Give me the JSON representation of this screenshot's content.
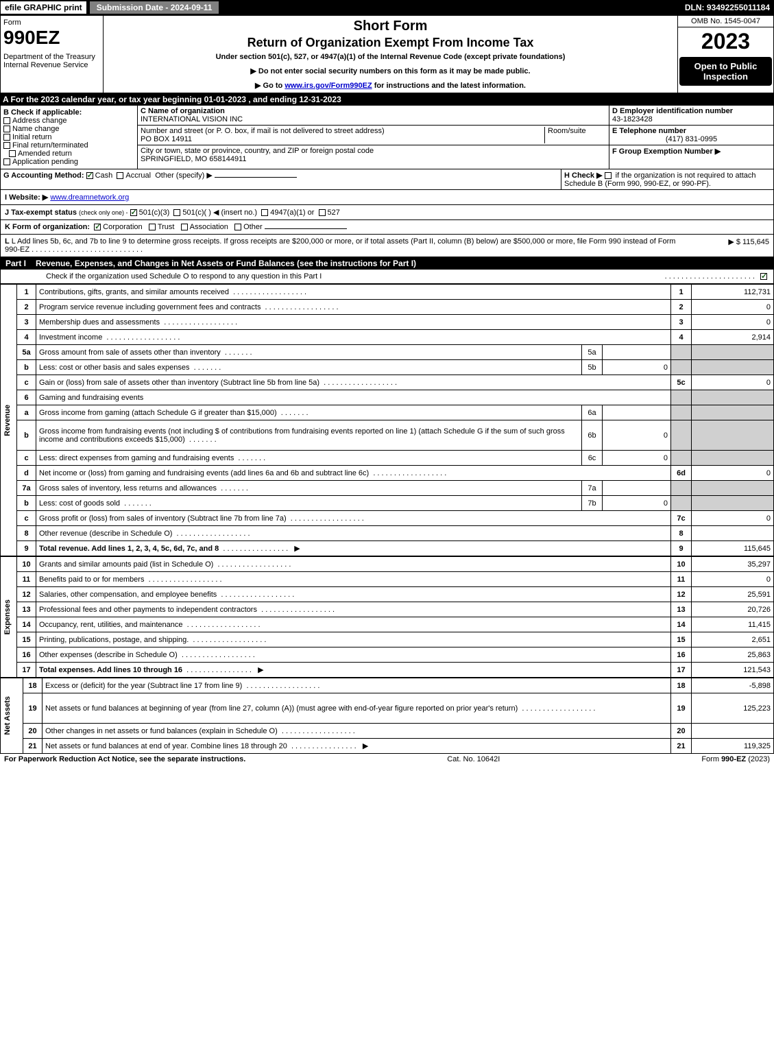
{
  "topbar": {
    "efile": "efile GRAPHIC print",
    "subdate_label": "Submission Date - 2024-09-11",
    "dln": "DLN: 93492255011184"
  },
  "header": {
    "form_label": "Form",
    "form_number": "990EZ",
    "dept": "Department of the Treasury\nInternal Revenue Service",
    "title1": "Short Form",
    "title2": "Return of Organization Exempt From Income Tax",
    "subtitle": "Under section 501(c), 527, or 4947(a)(1) of the Internal Revenue Code (except private foundations)",
    "note1": "▶ Do not enter social security numbers on this form as it may be made public.",
    "note2_pre": "▶ Go to ",
    "note2_link": "www.irs.gov/Form990EZ",
    "note2_post": " for instructions and the latest information.",
    "omb": "OMB No. 1545-0047",
    "year": "2023",
    "open_to": "Open to Public Inspection"
  },
  "sectionA": "A  For the 2023 calendar year, or tax year beginning 01-01-2023 , and ending 12-31-2023",
  "boxB": {
    "label": "B  Check if applicable:",
    "items": [
      "Address change",
      "Name change",
      "Initial return",
      "Final return/terminated",
      "Amended return",
      "Application pending"
    ]
  },
  "boxC": {
    "name_label": "C Name of organization",
    "name": "INTERNATIONAL VISION INC",
    "street_label": "Number and street (or P. O. box, if mail is not delivered to street address)",
    "room_label": "Room/suite",
    "street": "PO BOX 14911",
    "city_label": "City or town, state or province, country, and ZIP or foreign postal code",
    "city": "SPRINGFIELD, MO  658144911"
  },
  "boxDE": {
    "d_label": "D Employer identification number",
    "d_value": "43-1823428",
    "e_label": "E Telephone number",
    "e_value": "(417) 831-0995",
    "f_label": "F Group Exemption Number   ▶"
  },
  "lineG": {
    "label": "G Accounting Method:",
    "cash": "Cash",
    "accrual": "Accrual",
    "other": "Other (specify) ▶"
  },
  "lineH": {
    "label": "H  Check ▶",
    "text": "if the organization is not required to attach Schedule B (Form 990, 990-EZ, or 990-PF)."
  },
  "lineI": {
    "label": "I Website: ▶",
    "value": "www.dreamnetwork.org"
  },
  "lineJ": {
    "label": "J Tax-exempt status",
    "note": "(check only one) -",
    "opt1": "501(c)(3)",
    "opt2": "501(c)(   ) ◀ (insert no.)",
    "opt3": "4947(a)(1) or",
    "opt4": "527"
  },
  "lineK": {
    "label": "K Form of organization:",
    "opts": [
      "Corporation",
      "Trust",
      "Association",
      "Other"
    ]
  },
  "lineL": {
    "text": "L Add lines 5b, 6c, and 7b to line 9 to determine gross receipts. If gross receipts are $200,000 or more, or if total assets (Part II, column (B) below) are $500,000 or more, file Form 990 instead of Form 990-EZ",
    "amount": "▶ $ 115,645"
  },
  "partI": {
    "label": "Part I",
    "title": "Revenue, Expenses, and Changes in Net Assets or Fund Balances (see the instructions for Part I)",
    "checknote": "Check if the organization used Schedule O to respond to any question in this Part I"
  },
  "sections": {
    "revenue": "Revenue",
    "expenses": "Expenses",
    "netassets": "Net Assets"
  },
  "lines": [
    {
      "n": "1",
      "desc": "Contributions, gifts, grants, and similar amounts received",
      "rn": "1",
      "ramt": "112,731"
    },
    {
      "n": "2",
      "desc": "Program service revenue including government fees and contracts",
      "rn": "2",
      "ramt": "0"
    },
    {
      "n": "3",
      "desc": "Membership dues and assessments",
      "rn": "3",
      "ramt": "0"
    },
    {
      "n": "4",
      "desc": "Investment income",
      "rn": "4",
      "ramt": "2,914"
    },
    {
      "n": "5a",
      "desc": "Gross amount from sale of assets other than inventory",
      "sn": "5a",
      "samt": "",
      "shadeR": true
    },
    {
      "n": "b",
      "desc": "Less: cost or other basis and sales expenses",
      "sn": "5b",
      "samt": "0",
      "shadeR": true
    },
    {
      "n": "c",
      "desc": "Gain or (loss) from sale of assets other than inventory (Subtract line 5b from line 5a)",
      "rn": "5c",
      "ramt": "0"
    },
    {
      "n": "6",
      "desc": "Gaming and fundraising events",
      "shadeR": true,
      "nosub": true
    },
    {
      "n": "a",
      "desc": "Gross income from gaming (attach Schedule G if greater than $15,000)",
      "sn": "6a",
      "samt": "",
      "shadeR": true
    },
    {
      "n": "b",
      "desc": "Gross income from fundraising events (not including $                          of contributions from fundraising events reported on line 1) (attach Schedule G if the sum of such gross income and contributions exceeds $15,000)",
      "sn": "6b",
      "samt": "0",
      "shadeR": true,
      "tall": true
    },
    {
      "n": "c",
      "desc": "Less: direct expenses from gaming and fundraising events",
      "sn": "6c",
      "samt": "0",
      "shadeR": true
    },
    {
      "n": "d",
      "desc": "Net income or (loss) from gaming and fundraising events (add lines 6a and 6b and subtract line 6c)",
      "rn": "6d",
      "ramt": "0"
    },
    {
      "n": "7a",
      "desc": "Gross sales of inventory, less returns and allowances",
      "sn": "7a",
      "samt": "",
      "shadeR": true
    },
    {
      "n": "b",
      "desc": "Less: cost of goods sold",
      "sn": "7b",
      "samt": "0",
      "shadeR": true
    },
    {
      "n": "c",
      "desc": "Gross profit or (loss) from sales of inventory (Subtract line 7b from line 7a)",
      "rn": "7c",
      "ramt": "0"
    },
    {
      "n": "8",
      "desc": "Other revenue (describe in Schedule O)",
      "rn": "8",
      "ramt": ""
    },
    {
      "n": "9",
      "desc": "Total revenue. Add lines 1, 2, 3, 4, 5c, 6d, 7c, and 8",
      "rn": "9",
      "ramt": "115,645",
      "bold": true,
      "arrow": true
    }
  ],
  "exp_lines": [
    {
      "n": "10",
      "desc": "Grants and similar amounts paid (list in Schedule O)",
      "rn": "10",
      "ramt": "35,297"
    },
    {
      "n": "11",
      "desc": "Benefits paid to or for members",
      "rn": "11",
      "ramt": "0"
    },
    {
      "n": "12",
      "desc": "Salaries, other compensation, and employee benefits",
      "rn": "12",
      "ramt": "25,591"
    },
    {
      "n": "13",
      "desc": "Professional fees and other payments to independent contractors",
      "rn": "13",
      "ramt": "20,726"
    },
    {
      "n": "14",
      "desc": "Occupancy, rent, utilities, and maintenance",
      "rn": "14",
      "ramt": "11,415"
    },
    {
      "n": "15",
      "desc": "Printing, publications, postage, and shipping.",
      "rn": "15",
      "ramt": "2,651"
    },
    {
      "n": "16",
      "desc": "Other expenses (describe in Schedule O)",
      "rn": "16",
      "ramt": "25,863"
    },
    {
      "n": "17",
      "desc": "Total expenses. Add lines 10 through 16",
      "rn": "17",
      "ramt": "121,543",
      "bold": true,
      "arrow": true
    }
  ],
  "na_lines": [
    {
      "n": "18",
      "desc": "Excess or (deficit) for the year (Subtract line 17 from line 9)",
      "rn": "18",
      "ramt": "-5,898"
    },
    {
      "n": "19",
      "desc": "Net assets or fund balances at beginning of year (from line 27, column (A)) (must agree with end-of-year figure reported on prior year's return)",
      "rn": "19",
      "ramt": "125,223",
      "tall": true
    },
    {
      "n": "20",
      "desc": "Other changes in net assets or fund balances (explain in Schedule O)",
      "rn": "20",
      "ramt": ""
    },
    {
      "n": "21",
      "desc": "Net assets or fund balances at end of year. Combine lines 18 through 20",
      "rn": "21",
      "ramt": "119,325",
      "arrow": true
    }
  ],
  "footer": {
    "left": "For Paperwork Reduction Act Notice, see the separate instructions.",
    "mid": "Cat. No. 10642I",
    "right": "Form 990-EZ (2023)"
  }
}
